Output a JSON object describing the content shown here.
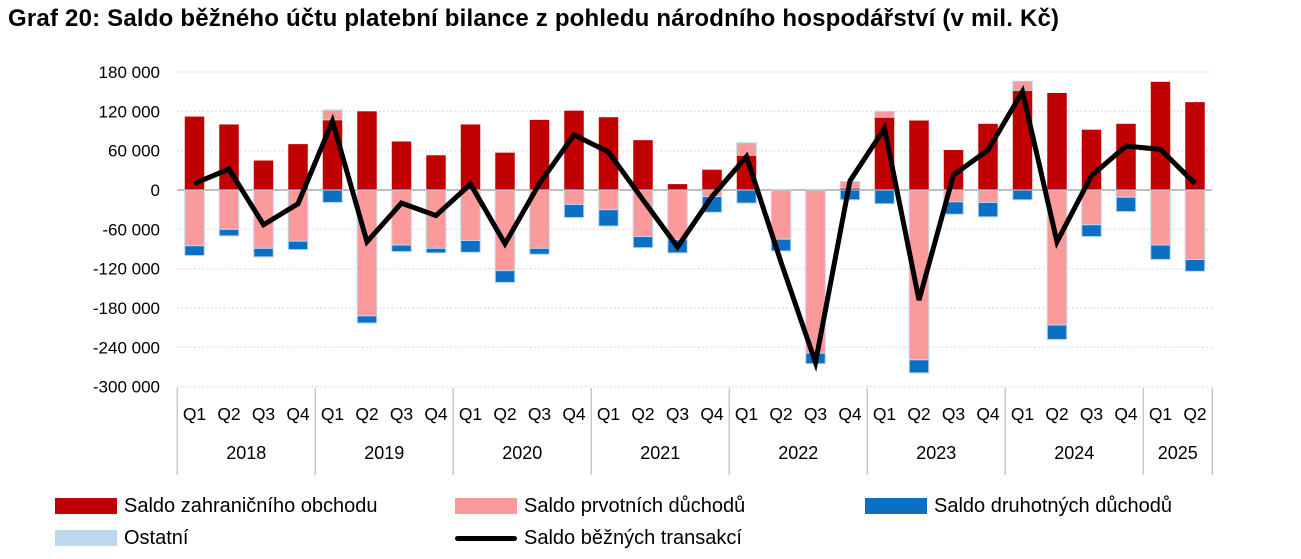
{
  "title": "Graf 20: Saldo běžného účtu platební bilance z pohledu národního hospodářství (v mil. Kč)",
  "y_axis": {
    "unit": "mil. Kč",
    "min": -300000,
    "max": 180000,
    "step": 60000,
    "labels": [
      "180 000",
      "120 000",
      "60 000",
      "0",
      "-60 000",
      "-120 000",
      "-180 000",
      "-240 000",
      "-300 000"
    ]
  },
  "x_axis": {
    "years": [
      {
        "label": "2018",
        "quarters": [
          "Q1",
          "Q2",
          "Q3",
          "Q4"
        ]
      },
      {
        "label": "2019",
        "quarters": [
          "Q1",
          "Q2",
          "Q3",
          "Q4"
        ]
      },
      {
        "label": "2020",
        "quarters": [
          "Q1",
          "Q2",
          "Q3",
          "Q4"
        ]
      },
      {
        "label": "2021",
        "quarters": [
          "Q1",
          "Q2",
          "Q3",
          "Q4"
        ]
      },
      {
        "label": "2022",
        "quarters": [
          "Q1",
          "Q2",
          "Q3",
          "Q4"
        ]
      },
      {
        "label": "2023",
        "quarters": [
          "Q1",
          "Q2",
          "Q3",
          "Q4"
        ]
      },
      {
        "label": "2024",
        "quarters": [
          "Q1",
          "Q2",
          "Q3",
          "Q4"
        ]
      },
      {
        "label": "2025",
        "quarters": [
          "Q1",
          "Q2"
        ]
      }
    ]
  },
  "legend": {
    "items": [
      {
        "label": "Saldo zahraničního obchodu",
        "color": "#C00000",
        "type": "box"
      },
      {
        "label": "Saldo prvotních důchodů",
        "color": "#FA9A9A",
        "type": "box"
      },
      {
        "label": "Saldo druhotných důchodů",
        "color": "#0B70C4",
        "type": "box"
      },
      {
        "label": "Ostatní",
        "color": "#BDD7EE",
        "type": "box"
      },
      {
        "label": "Saldo běžných transakcí",
        "color": "#000000",
        "type": "line"
      }
    ]
  },
  "chart_data": {
    "type": "bar",
    "subtype": "stacked-bars-with-line-overlay",
    "unit": "mil. Kč",
    "title": "Graf 20: Saldo běžného účtu platební bilance z pohledu národního hospodářství (v mil. Kč)",
    "xlabel": "",
    "ylabel": "mil. Kč",
    "ylim": [
      -300000,
      180000
    ],
    "grid": true,
    "legend_position": "bottom",
    "categories": [
      "2018 Q1",
      "2018 Q2",
      "2018 Q3",
      "2018 Q4",
      "2019 Q1",
      "2019 Q2",
      "2019 Q3",
      "2019 Q4",
      "2020 Q1",
      "2020 Q2",
      "2020 Q3",
      "2020 Q4",
      "2021 Q1",
      "2021 Q2",
      "2021 Q3",
      "2021 Q4",
      "2022 Q1",
      "2022 Q2",
      "2022 Q3",
      "2022 Q4",
      "2023 Q1",
      "2023 Q2",
      "2023 Q3",
      "2023 Q4",
      "2024 Q1",
      "2024 Q2",
      "2024 Q3",
      "2024 Q4",
      "2025 Q1",
      "2025 Q2"
    ],
    "series": [
      {
        "name": "Saldo zahraničního obchodu",
        "type": "bar",
        "color": "#C00000",
        "values": [
          112000,
          100000,
          45000,
          70000,
          107000,
          120000,
          74000,
          53000,
          100000,
          57000,
          107000,
          121000,
          111000,
          76000,
          9000,
          31000,
          53000,
          0,
          0,
          3000,
          111000,
          106000,
          61000,
          101000,
          152000,
          148000,
          92000,
          101000,
          165000,
          134000
        ]
      },
      {
        "name": "Saldo prvotních důchodů",
        "type": "bar",
        "color": "#FA9A9A",
        "values": [
          -85000,
          -60000,
          -89000,
          -78000,
          15000,
          -192000,
          -84000,
          -89000,
          -77000,
          -123000,
          -89000,
          -22000,
          -30000,
          -71000,
          -76000,
          -10000,
          19000,
          -75000,
          -249000,
          10000,
          9000,
          -259000,
          -18000,
          -19000,
          14000,
          -206000,
          -53000,
          -11000,
          -84000,
          -106000
        ]
      },
      {
        "name": "Saldo druhotných důchodů",
        "type": "bar",
        "color": "#0B70C4",
        "values": [
          -15000,
          -10000,
          -13000,
          -13000,
          -19000,
          -11000,
          -10000,
          -7000,
          -18000,
          -18000,
          -9000,
          -20000,
          -25000,
          -17000,
          -20000,
          -24000,
          -20000,
          -18000,
          -16000,
          -15000,
          -21000,
          -20000,
          -19000,
          -22000,
          -15000,
          -22000,
          -18000,
          -22000,
          -22000,
          -18000
        ]
      },
      {
        "name": "Ostatní",
        "type": "bar",
        "color": "#BDD7EE",
        "values": [
          0,
          0,
          0,
          0,
          0,
          0,
          0,
          0,
          0,
          0,
          0,
          0,
          0,
          0,
          0,
          0,
          0,
          0,
          0,
          0,
          0,
          0,
          0,
          0,
          0,
          0,
          0,
          0,
          0,
          0
        ]
      },
      {
        "name": "Saldo běžných transakcí",
        "type": "line",
        "color": "#000000",
        "values": [
          10000,
          32000,
          -53000,
          -21000,
          105000,
          -79000,
          -20000,
          -39000,
          9000,
          -82000,
          10000,
          84000,
          58000,
          -15000,
          -87000,
          -10000,
          51000,
          -110000,
          -263000,
          14000,
          94000,
          -168000,
          23000,
          61000,
          150000,
          -79000,
          22000,
          67000,
          62000,
          10000
        ]
      }
    ]
  },
  "colors": {
    "background": "#FFFFFF",
    "gridline": "#D9D9D9",
    "zero_line": "#BFBFBF",
    "separator": "#BFBFBF",
    "bar_outline": "#BDD7EE",
    "text": "#000000"
  }
}
